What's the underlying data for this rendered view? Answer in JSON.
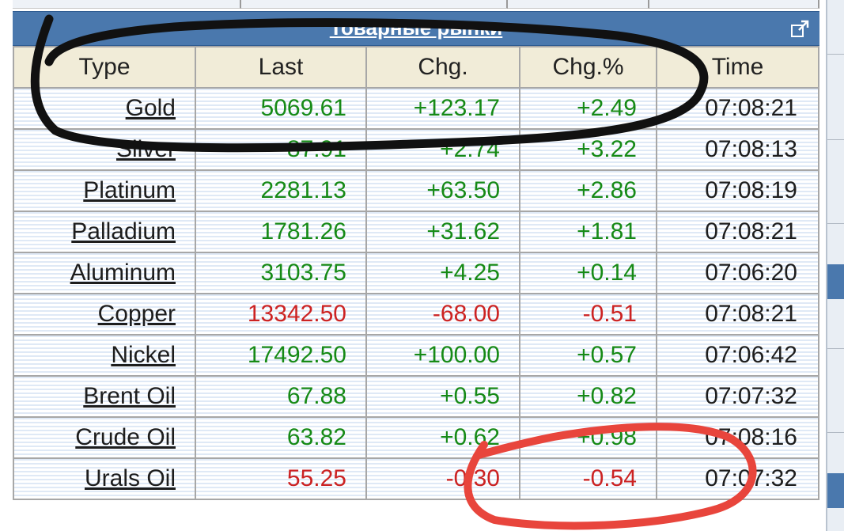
{
  "panel": {
    "title": "Товарные рынки",
    "accent_color": "#4a78ad",
    "expand_icon": "expand-icon"
  },
  "table": {
    "headers": [
      "Type",
      "Last",
      "Chg.",
      "Chg.%",
      "Time"
    ],
    "rows": [
      {
        "type": "Gold",
        "last": "5069.61",
        "chg": "+123.17",
        "pct": "+2.49",
        "time": "07:08:21",
        "dir": "up"
      },
      {
        "type": "Silver",
        "last": "87.91",
        "chg": "+2.74",
        "pct": "+3.22",
        "time": "07:08:13",
        "dir": "up"
      },
      {
        "type": "Platinum",
        "last": "2281.13",
        "chg": "+63.50",
        "pct": "+2.86",
        "time": "07:08:19",
        "dir": "up"
      },
      {
        "type": "Palladium",
        "last": "1781.26",
        "chg": "+31.62",
        "pct": "+1.81",
        "time": "07:08:21",
        "dir": "up"
      },
      {
        "type": "Aluminum",
        "last": "3103.75",
        "chg": "+4.25",
        "pct": "+0.14",
        "time": "07:06:20",
        "dir": "up"
      },
      {
        "type": "Copper",
        "last": "13342.50",
        "chg": "-68.00",
        "pct": "-0.51",
        "time": "07:08:21",
        "dir": "down"
      },
      {
        "type": "Nickel",
        "last": "17492.50",
        "chg": "+100.00",
        "pct": "+0.57",
        "time": "07:06:42",
        "dir": "up"
      },
      {
        "type": "Brent Oil",
        "last": "67.88",
        "chg": "+0.55",
        "pct": "+0.82",
        "time": "07:07:32",
        "dir": "up"
      },
      {
        "type": "Crude Oil",
        "last": "63.82",
        "chg": "+0.62",
        "pct": "+0.98",
        "time": "07:08:16",
        "dir": "up"
      },
      {
        "type": "Urals Oil",
        "last": "55.25",
        "chg": "-0.30",
        "pct": "-0.54",
        "time": "07:07:32",
        "dir": "down"
      }
    ]
  },
  "colors": {
    "up": "#168a16",
    "down": "#cc2222",
    "header_bg": "#f1ecd8",
    "black_annotation": "#111111",
    "red_annotation": "#e8453c"
  }
}
